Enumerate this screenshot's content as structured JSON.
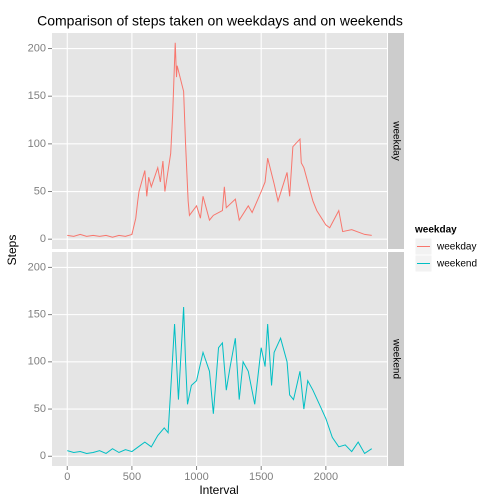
{
  "chart_data": {
    "type": "line",
    "title": "Comparison of steps taken on weekdays and on weekends",
    "xlabel": "Interval",
    "ylabel": "Steps",
    "legend_title": "weekday",
    "xlim": [
      -118,
      2473
    ],
    "xticks": [
      0,
      500,
      1000,
      1500,
      2000
    ],
    "ylim": [
      -10.3,
      216.3
    ],
    "yticks": [
      0,
      50,
      100,
      150,
      200
    ],
    "grid": true,
    "series": [
      {
        "name": "weekday",
        "color": "#F8766D",
        "x": [
          0,
          50,
          100,
          150,
          200,
          250,
          300,
          350,
          400,
          450,
          500,
          530,
          545,
          555,
          600,
          615,
          630,
          650,
          700,
          720,
          740,
          755,
          800,
          815,
          835,
          845,
          850,
          900,
          915,
          925,
          935,
          945,
          1000,
          1030,
          1050,
          1100,
          1130,
          1200,
          1215,
          1230,
          1300,
          1330,
          1400,
          1430,
          1500,
          1530,
          1550,
          1600,
          1630,
          1700,
          1720,
          1745,
          1800,
          1810,
          1830,
          1900,
          1930,
          2000,
          2030,
          2100,
          2130,
          2200,
          2300,
          2355
        ],
        "values": [
          4,
          3,
          5,
          3,
          4,
          3,
          4,
          2,
          4,
          3,
          5,
          22,
          40,
          50,
          72,
          45,
          65,
          55,
          75,
          60,
          82,
          50,
          90,
          130,
          206,
          170,
          182,
          155,
          100,
          70,
          40,
          25,
          35,
          22,
          45,
          20,
          25,
          30,
          55,
          33,
          42,
          20,
          35,
          28,
          50,
          60,
          85,
          58,
          40,
          70,
          45,
          97,
          105,
          80,
          75,
          40,
          30,
          15,
          12,
          30,
          8,
          10,
          5,
          4
        ]
      },
      {
        "name": "weekend",
        "color": "#00BFC4",
        "x": [
          0,
          50,
          100,
          150,
          200,
          250,
          300,
          350,
          400,
          450,
          500,
          550,
          600,
          650,
          700,
          750,
          780,
          800,
          830,
          845,
          860,
          900,
          915,
          930,
          960,
          1000,
          1050,
          1100,
          1130,
          1170,
          1200,
          1230,
          1260,
          1300,
          1330,
          1360,
          1400,
          1450,
          1500,
          1530,
          1550,
          1580,
          1600,
          1650,
          1700,
          1720,
          1750,
          1800,
          1830,
          1860,
          1900,
          1950,
          2000,
          2050,
          2100,
          2150,
          2200,
          2250,
          2300,
          2355
        ],
        "values": [
          6,
          4,
          5,
          3,
          4,
          6,
          3,
          8,
          4,
          7,
          5,
          10,
          15,
          10,
          22,
          30,
          25,
          70,
          140,
          100,
          60,
          158,
          100,
          55,
          75,
          80,
          110,
          90,
          45,
          115,
          120,
          70,
          95,
          125,
          60,
          100,
          90,
          55,
          115,
          95,
          140,
          75,
          110,
          125,
          100,
          65,
          60,
          90,
          50,
          80,
          70,
          55,
          40,
          20,
          10,
          12,
          5,
          15,
          3,
          8
        ]
      }
    ]
  }
}
